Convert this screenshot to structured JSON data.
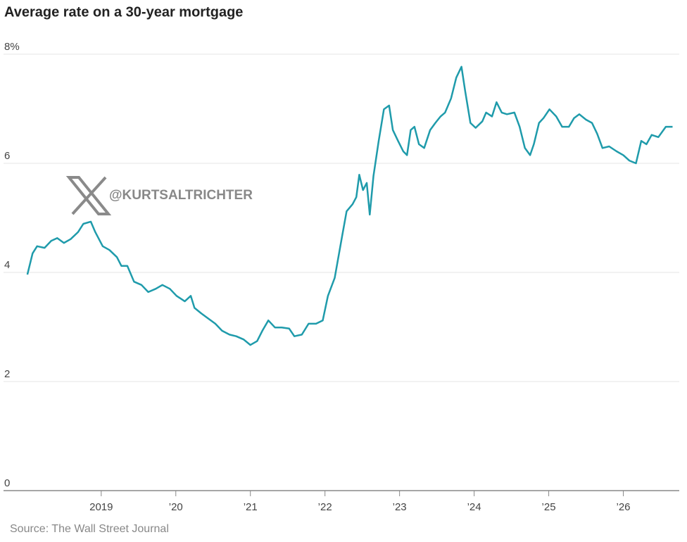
{
  "chart_data": {
    "type": "line",
    "title": "Average rate on a 30-year mortgage",
    "source": "Source: The Wall Street Journal",
    "annotation": "@KURTSALTRICHTER",
    "xlim": [
      2017.69,
      2026.75
    ],
    "xticks": [
      {
        "value": 2019,
        "label": "2019"
      },
      {
        "value": 2020,
        "label": "’20"
      },
      {
        "value": 2021,
        "label": "’21"
      },
      {
        "value": 2022,
        "label": "’22"
      },
      {
        "value": 2023,
        "label": "’23"
      },
      {
        "value": 2024,
        "label": "’24"
      },
      {
        "value": 2025,
        "label": "’25"
      },
      {
        "value": 2026,
        "label": "’26"
      }
    ],
    "ylim": [
      0,
      8
    ],
    "yticks": [
      0,
      2,
      4,
      6,
      {
        "value": 8,
        "label": "8%"
      }
    ],
    "grid": true,
    "series": [
      {
        "color": "#1f9bab",
        "x": [
          2018.01,
          2018.08,
          2018.14,
          2018.24,
          2018.33,
          2018.41,
          2018.5,
          2018.59,
          2018.69,
          2018.76,
          2018.86,
          2018.92,
          2019.02,
          2019.11,
          2019.21,
          2019.27,
          2019.35,
          2019.44,
          2019.54,
          2019.63,
          2019.73,
          2019.82,
          2019.92,
          2020.01,
          2020.12,
          2020.2,
          2020.25,
          2020.34,
          2020.43,
          2020.53,
          2020.62,
          2020.72,
          2020.81,
          2020.91,
          2021.0,
          2021.09,
          2021.16,
          2021.24,
          2021.33,
          2021.42,
          2021.52,
          2021.59,
          2021.69,
          2021.78,
          2021.88,
          2021.97,
          2022.04,
          2022.13,
          2022.23,
          2022.29,
          2022.37,
          2022.42,
          2022.46,
          2022.51,
          2022.56,
          2022.6,
          2022.65,
          2022.72,
          2022.79,
          2022.86,
          2022.91,
          2022.98,
          2023.05,
          2023.1,
          2023.15,
          2023.2,
          2023.26,
          2023.33,
          2023.41,
          2023.48,
          2023.55,
          2023.61,
          2023.69,
          2023.76,
          2023.83,
          2023.88,
          2023.95,
          2024.02,
          2024.11,
          2024.16,
          2024.24,
          2024.3,
          2024.37,
          2024.44,
          2024.54,
          2024.61,
          2024.68,
          2024.75,
          2024.8,
          2024.87,
          2024.93,
          2025.01,
          2025.1,
          2025.18,
          2025.27,
          2025.34,
          2025.41,
          2025.5,
          2025.58,
          2025.65,
          2025.72,
          2025.81,
          2025.91,
          2026.0,
          2026.08,
          2026.17,
          2026.24,
          2026.31,
          2026.38,
          2026.47,
          2026.57,
          2026.66
        ],
        "values": [
          3.96,
          4.35,
          4.48,
          4.45,
          4.58,
          4.63,
          4.54,
          4.61,
          4.74,
          4.89,
          4.93,
          4.74,
          4.48,
          4.41,
          4.28,
          4.12,
          4.12,
          3.83,
          3.77,
          3.64,
          3.7,
          3.77,
          3.7,
          3.57,
          3.47,
          3.57,
          3.35,
          3.25,
          3.16,
          3.06,
          2.93,
          2.86,
          2.83,
          2.77,
          2.67,
          2.74,
          2.93,
          3.12,
          2.99,
          2.99,
          2.97,
          2.83,
          2.86,
          3.06,
          3.06,
          3.12,
          3.57,
          3.9,
          4.67,
          5.12,
          5.25,
          5.38,
          5.79,
          5.51,
          5.64,
          5.06,
          5.77,
          6.41,
          6.99,
          7.06,
          6.61,
          6.41,
          6.22,
          6.15,
          6.61,
          6.67,
          6.35,
          6.28,
          6.61,
          6.74,
          6.86,
          6.93,
          7.19,
          7.57,
          7.77,
          7.32,
          6.74,
          6.65,
          6.77,
          6.93,
          6.86,
          7.12,
          6.93,
          6.9,
          6.93,
          6.67,
          6.28,
          6.15,
          6.35,
          6.74,
          6.83,
          6.99,
          6.86,
          6.67,
          6.67,
          6.83,
          6.9,
          6.8,
          6.74,
          6.54,
          6.28,
          6.31,
          6.22,
          6.15,
          6.05,
          6.0,
          6.41,
          6.35,
          6.52,
          6.48,
          6.67,
          6.67
        ]
      }
    ]
  }
}
